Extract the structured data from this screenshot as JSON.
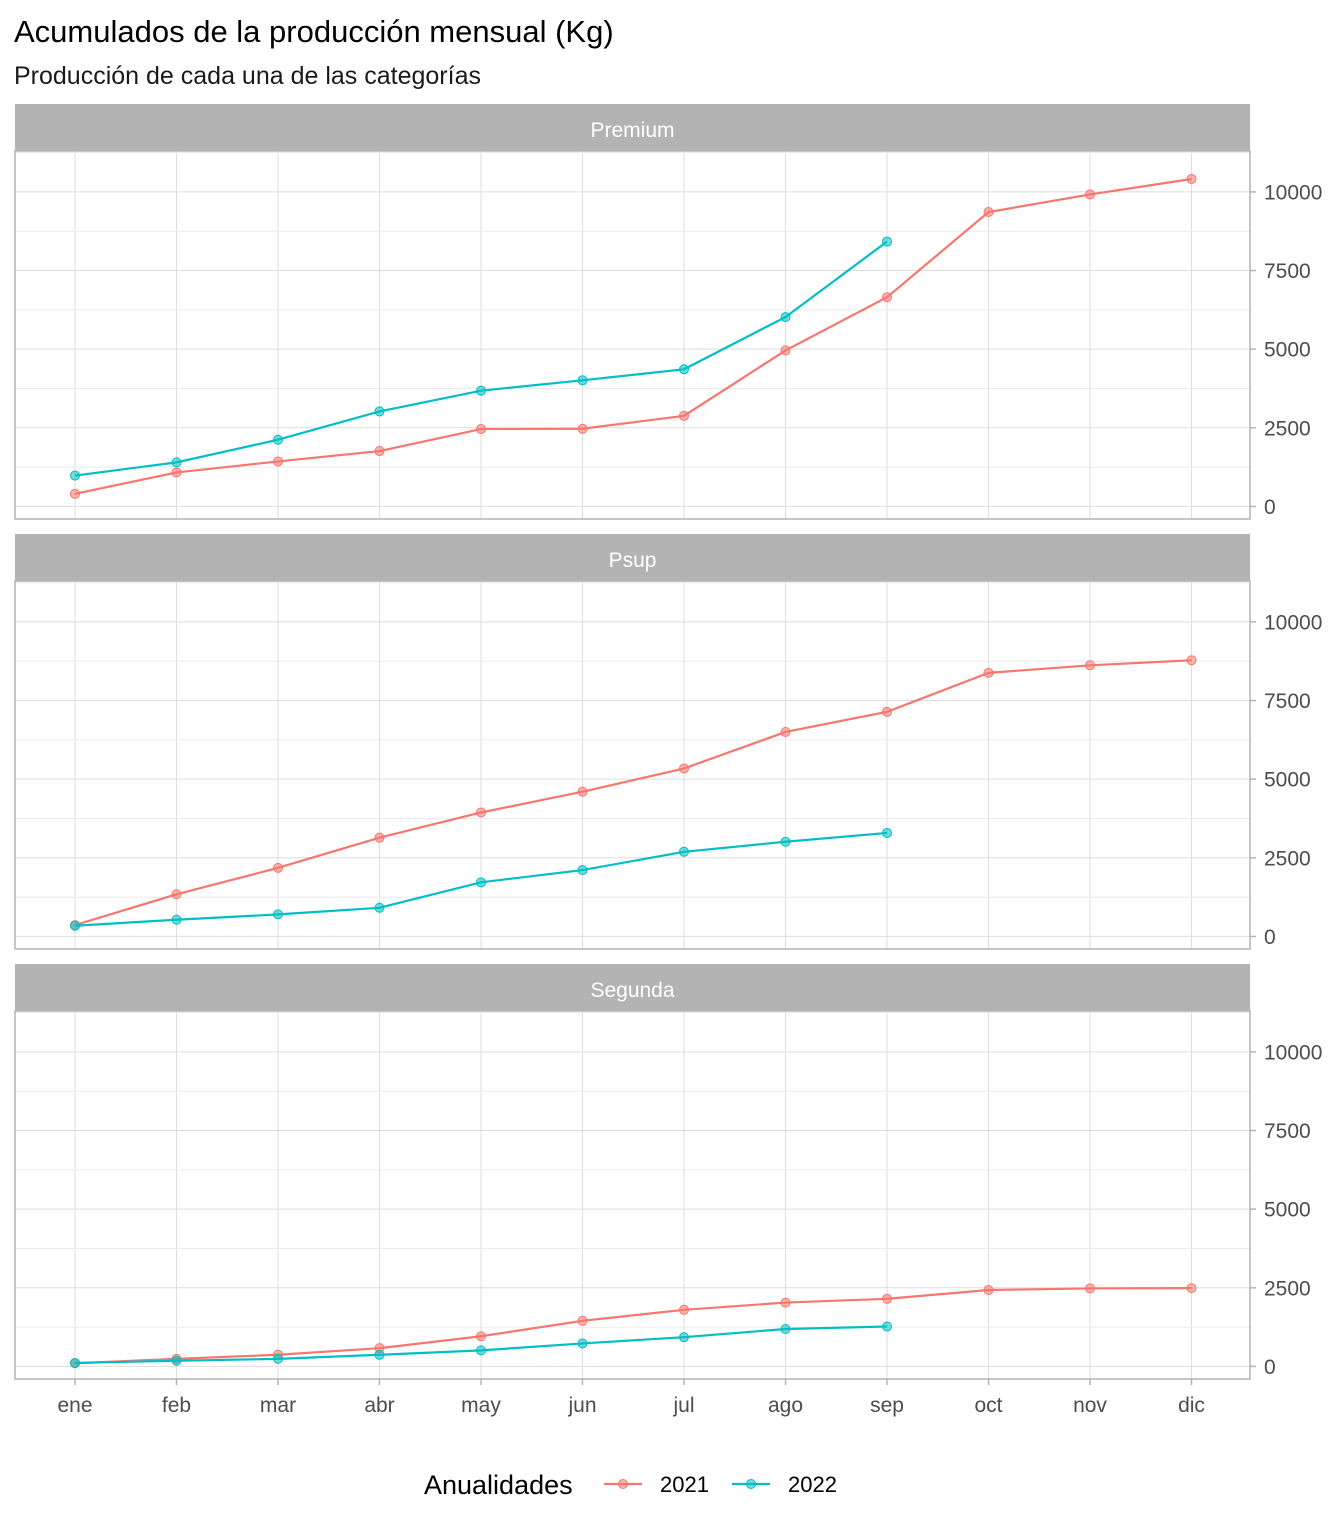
{
  "chart_data": {
    "type": "line",
    "title": "Acumulados de la producción mensual (Kg)",
    "subtitle": "Producción de cada una de las categorías",
    "x": [
      "ene",
      "feb",
      "mar",
      "abr",
      "may",
      "jun",
      "jul",
      "ago",
      "sep",
      "oct",
      "nov",
      "dic"
    ],
    "ylim": [
      -400,
      11300
    ],
    "y_ticks": [
      0,
      2500,
      5000,
      7500,
      10000
    ],
    "y_axis_position": "right",
    "grid": true,
    "legend": {
      "title": "Anualidades",
      "position": "bottom"
    },
    "colors": {
      "2021": "#F8766D",
      "2022": "#00BFC4",
      "strip_bg": "#B3B3B3",
      "grid": "#DEDEDE",
      "border": "#B3B3B3"
    },
    "panels": [
      {
        "name": "Premium",
        "series": [
          {
            "name": "2021",
            "values": [
              400,
              1080,
              1430,
              1760,
              2460,
              2470,
              2880,
              4960,
              6650,
              9360,
              9920,
              10410
            ]
          },
          {
            "name": "2022",
            "values": [
              980,
              1400,
              2120,
              3020,
              3680,
              4010,
              4360,
              6020,
              8420
            ]
          }
        ]
      },
      {
        "name": "Psup",
        "series": [
          {
            "name": "2021",
            "values": [
              360,
              1340,
              2180,
              3140,
              3940,
              4600,
              5340,
              6500,
              7140,
              8380,
              8620,
              8780
            ]
          },
          {
            "name": "2022",
            "values": [
              340,
              530,
              700,
              910,
              1720,
              2110,
              2690,
              3010,
              3290
            ]
          }
        ]
      },
      {
        "name": "Segunda",
        "series": [
          {
            "name": "2021",
            "values": [
              100,
              240,
              370,
              580,
              960,
              1450,
              1800,
              2030,
              2150,
              2430,
              2480,
              2490
            ]
          },
          {
            "name": "2022",
            "values": [
              110,
              180,
              240,
              370,
              510,
              730,
              930,
              1190,
              1270
            ]
          }
        ]
      }
    ]
  }
}
